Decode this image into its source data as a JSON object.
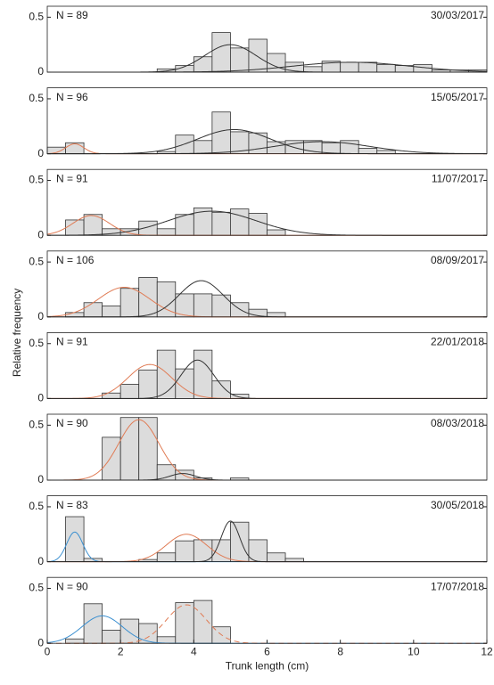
{
  "chart_data": [
    {
      "type": "histogram",
      "label": "N = 89",
      "date": "30/03/2017",
      "xlim": [
        0,
        12
      ],
      "ylim": [
        0,
        0.6
      ],
      "yticks": [
        0,
        0.5
      ],
      "bins": [
        3,
        3.5,
        4,
        4.5,
        5,
        5.5,
        6,
        6.5,
        7,
        7.5,
        8,
        8.5,
        9,
        9.5,
        10,
        10.5,
        11,
        11.5,
        12
      ],
      "counts": [
        0.03,
        0.06,
        0.14,
        0.36,
        0.22,
        0.3,
        0.17,
        0.09,
        0.05,
        0.1,
        0.09,
        0.09,
        0.07,
        0.06,
        0.07,
        0.02,
        0.02,
        0.02
      ],
      "components": [
        {
          "color": "#333333",
          "mean": 5.0,
          "sd": 0.7,
          "peak": 0.25
        },
        {
          "color": "#333333",
          "mean": 8.3,
          "sd": 1.6,
          "peak": 0.09
        }
      ]
    },
    {
      "type": "histogram",
      "label": "N = 96",
      "date": "15/05/2017",
      "xlim": [
        0,
        12
      ],
      "ylim": [
        0,
        0.6
      ],
      "yticks": [
        0,
        0.5
      ],
      "bins": [
        0,
        0.5,
        1,
        1.5,
        2,
        2.5,
        3,
        3.5,
        4,
        4.5,
        5,
        5.5,
        6,
        6.5,
        7,
        7.5,
        8,
        8.5,
        9,
        9.5
      ],
      "counts": [
        0.06,
        0.1,
        0,
        0,
        0,
        0,
        0.02,
        0.17,
        0.12,
        0.38,
        0.2,
        0.19,
        0.11,
        0.12,
        0.12,
        0.1,
        0.12,
        0.05,
        0.03
      ],
      "components": [
        {
          "color": "#e07b54",
          "mean": 0.75,
          "sd": 0.25,
          "peak": 0.09
        },
        {
          "color": "#333333",
          "mean": 5.1,
          "sd": 1.0,
          "peak": 0.22
        },
        {
          "color": "#333333",
          "mean": 7.5,
          "sd": 1.3,
          "peak": 0.11
        }
      ]
    },
    {
      "type": "histogram",
      "label": "N = 91",
      "date": "11/07/2017",
      "xlim": [
        0,
        12
      ],
      "ylim": [
        0,
        0.6
      ],
      "yticks": [
        0,
        0.5
      ],
      "bins": [
        0.5,
        1,
        1.5,
        2,
        2.5,
        3,
        3.5,
        4,
        4.5,
        5,
        5.5,
        6,
        6.5
      ],
      "counts": [
        0.14,
        0.19,
        0.06,
        0.06,
        0.13,
        0.06,
        0.19,
        0.25,
        0.21,
        0.24,
        0.2,
        0.05
      ],
      "components": [
        {
          "color": "#e07b54",
          "mean": 1.2,
          "sd": 0.5,
          "peak": 0.18
        },
        {
          "color": "#333333",
          "mean": 4.5,
          "sd": 1.2,
          "peak": 0.22
        }
      ]
    },
    {
      "type": "histogram",
      "label": "N = 106",
      "date": "08/09/2017",
      "xlim": [
        0,
        12
      ],
      "ylim": [
        0,
        0.6
      ],
      "yticks": [
        0,
        0.5
      ],
      "ylabel": "Relative frequency",
      "bins": [
        0.5,
        1,
        1.5,
        2,
        2.5,
        3,
        3.5,
        4,
        4.5,
        5,
        5.5,
        6,
        6.5
      ],
      "counts": [
        0.04,
        0.13,
        0.1,
        0.26,
        0.36,
        0.32,
        0.21,
        0.21,
        0.2,
        0.13,
        0.07,
        0.04
      ],
      "components": [
        {
          "color": "#e07b54",
          "mean": 2.1,
          "sd": 0.7,
          "peak": 0.27
        },
        {
          "color": "#333333",
          "mean": 4.2,
          "sd": 0.6,
          "peak": 0.33
        }
      ]
    },
    {
      "type": "histogram",
      "label": "N = 91",
      "date": "22/01/2018",
      "xlim": [
        0,
        12
      ],
      "ylim": [
        0,
        0.6
      ],
      "yticks": [
        0,
        0.5
      ],
      "bins": [
        1.5,
        2,
        2.5,
        3,
        3.5,
        4,
        4.5,
        5,
        5.5
      ],
      "counts": [
        0.05,
        0.13,
        0.26,
        0.44,
        0.27,
        0.44,
        0.16,
        0.04
      ],
      "components": [
        {
          "color": "#e07b54",
          "mean": 2.8,
          "sd": 0.6,
          "peak": 0.31
        },
        {
          "color": "#333333",
          "mean": 4.1,
          "sd": 0.45,
          "peak": 0.35
        }
      ]
    },
    {
      "type": "histogram",
      "label": "N = 90",
      "date": "08/03/2018",
      "xlim": [
        0,
        12
      ],
      "ylim": [
        0,
        0.6
      ],
      "yticks": [
        0,
        0.5
      ],
      "bins": [
        1.5,
        2,
        2.5,
        3,
        3.5,
        4,
        4.5,
        5,
        5.5
      ],
      "counts": [
        0.39,
        0.57,
        0.57,
        0.14,
        0.09,
        0.02,
        0,
        0.02
      ],
      "components": [
        {
          "color": "#e07b54",
          "mean": 2.5,
          "sd": 0.55,
          "peak": 0.55
        },
        {
          "color": "#333333",
          "mean": 3.7,
          "sd": 0.35,
          "peak": 0.06
        }
      ]
    },
    {
      "type": "histogram",
      "label": "N = 83",
      "date": "30/05/2018",
      "xlim": [
        0,
        12
      ],
      "ylim": [
        0,
        0.6
      ],
      "yticks": [
        0,
        0.5
      ],
      "bins": [
        0.5,
        1,
        1.5,
        2,
        2.5,
        3,
        3.5,
        4,
        4.5,
        5,
        5.5,
        6,
        6.5,
        7
      ],
      "counts": [
        0.41,
        0.03,
        0,
        0,
        0.02,
        0.08,
        0.19,
        0.2,
        0.2,
        0.36,
        0.2,
        0.08,
        0.03
      ],
      "components": [
        {
          "color": "#3a8fd0",
          "mean": 0.75,
          "sd": 0.22,
          "peak": 0.27
        },
        {
          "color": "#e07b54",
          "mean": 3.8,
          "sd": 0.55,
          "peak": 0.25
        },
        {
          "color": "#333333",
          "mean": 5.0,
          "sd": 0.25,
          "peak": 0.37
        }
      ]
    },
    {
      "type": "histogram",
      "label": "N = 90",
      "date": "17/07/2018",
      "xlim": [
        0,
        12
      ],
      "ylim": [
        0,
        0.6
      ],
      "yticks": [
        0,
        0.5
      ],
      "xticks": [
        0,
        2,
        4,
        6,
        8,
        10,
        12
      ],
      "xlabel": "Trunk length (cm)",
      "bins": [
        0.5,
        1,
        1.5,
        2,
        2.5,
        3,
        3.5,
        4,
        4.5,
        5
      ],
      "counts": [
        0.04,
        0.36,
        0.12,
        0.22,
        0.18,
        0.06,
        0.37,
        0.39,
        0.15
      ],
      "components": [
        {
          "color": "#3a8fd0",
          "mean": 1.5,
          "sd": 0.55,
          "peak": 0.25
        },
        {
          "color": "#e07b54",
          "mean": 3.8,
          "sd": 0.55,
          "peak": 0.35,
          "dashed": true
        }
      ]
    }
  ]
}
